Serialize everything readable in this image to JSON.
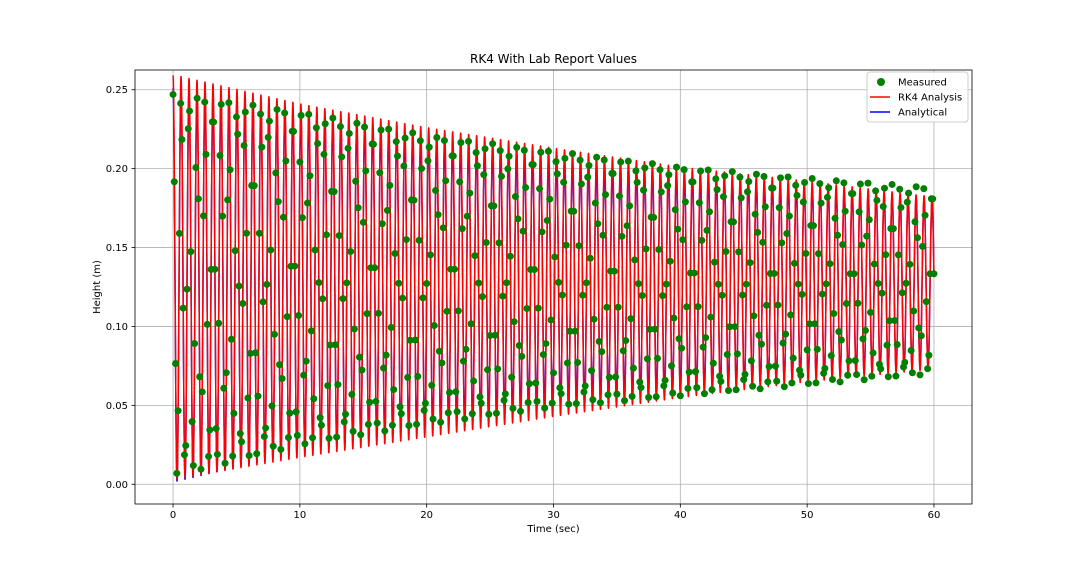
{
  "chart_data": {
    "type": "line",
    "title": "RK4 With Lab Report Values",
    "xlabel": "Time (sec)",
    "ylabel": "Height (m)",
    "xlim": [
      -3,
      63
    ],
    "ylim": [
      -0.0125,
      0.2625
    ],
    "xticks": [
      0,
      10,
      20,
      30,
      40,
      50,
      60
    ],
    "yticks": [
      0.0,
      0.05,
      0.1,
      0.15,
      0.2,
      0.25
    ],
    "xtick_labels": [
      "0",
      "10",
      "20",
      "30",
      "40",
      "50",
      "60"
    ],
    "ytick_labels": [
      "0.00",
      "0.05",
      "0.10",
      "0.15",
      "0.20",
      "0.25"
    ],
    "grid": true,
    "legend_position": "top-right",
    "oscillation": {
      "t_start": 0,
      "t_end": 60,
      "period_sec": 0.63,
      "equilibrium_m": 0.128,
      "amplitude_start_m": 0.124,
      "amplitude_end_m": 0.059
    },
    "series": [
      {
        "name": "Measured",
        "kind": "scatter",
        "color": "#007f00",
        "sample_dt_sec": 0.1,
        "peaks": [
          [
            0.3,
            0.247
          ],
          [
            10,
            0.236
          ],
          [
            20,
            0.221
          ],
          [
            30,
            0.211
          ],
          [
            40,
            0.201
          ],
          [
            50,
            0.194
          ],
          [
            60,
            0.188
          ]
        ],
        "troughs": [
          [
            0.0,
            0.005
          ],
          [
            10,
            0.025
          ],
          [
            20,
            0.038
          ],
          [
            30,
            0.049
          ],
          [
            40,
            0.056
          ],
          [
            50,
            0.063
          ],
          [
            60,
            0.07
          ]
        ]
      },
      {
        "name": "RK4 Analysis",
        "kind": "line",
        "color": "#ff0000",
        "peaks": [
          [
            0.3,
            0.259
          ],
          [
            10,
            0.241
          ],
          [
            20,
            0.226
          ],
          [
            30,
            0.213
          ],
          [
            40,
            0.201
          ],
          [
            50,
            0.192
          ],
          [
            60,
            0.182
          ]
        ],
        "troughs": [
          [
            0.0,
            0.003
          ],
          [
            10,
            0.017
          ],
          [
            20,
            0.03
          ],
          [
            30,
            0.043
          ],
          [
            40,
            0.055
          ],
          [
            50,
            0.065
          ],
          [
            60,
            0.073
          ]
        ]
      },
      {
        "name": "Analytical",
        "kind": "line",
        "color": "#0000ff",
        "peaks": [
          [
            0.0,
            0.251
          ],
          [
            10,
            0.235
          ],
          [
            20,
            0.219
          ],
          [
            30,
            0.206
          ],
          [
            40,
            0.196
          ],
          [
            50,
            0.188
          ],
          [
            60,
            0.18
          ]
        ],
        "troughs": [
          [
            0.3,
            0.002
          ],
          [
            10,
            0.02
          ],
          [
            20,
            0.036
          ],
          [
            30,
            0.049
          ],
          [
            40,
            0.059
          ],
          [
            50,
            0.067
          ],
          [
            60,
            0.075
          ]
        ]
      }
    ]
  }
}
